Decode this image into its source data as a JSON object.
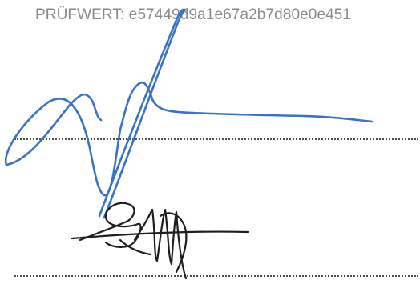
{
  "checksum": {
    "label": "PRÜFWERT:",
    "value": "e57449d9a1e67a2b7d80e0e451"
  },
  "signatures": [
    {
      "kind": "handwritten-signature",
      "color": "#3a72c4"
    },
    {
      "kind": "handwritten-signature",
      "color": "#1e1e1e"
    }
  ]
}
